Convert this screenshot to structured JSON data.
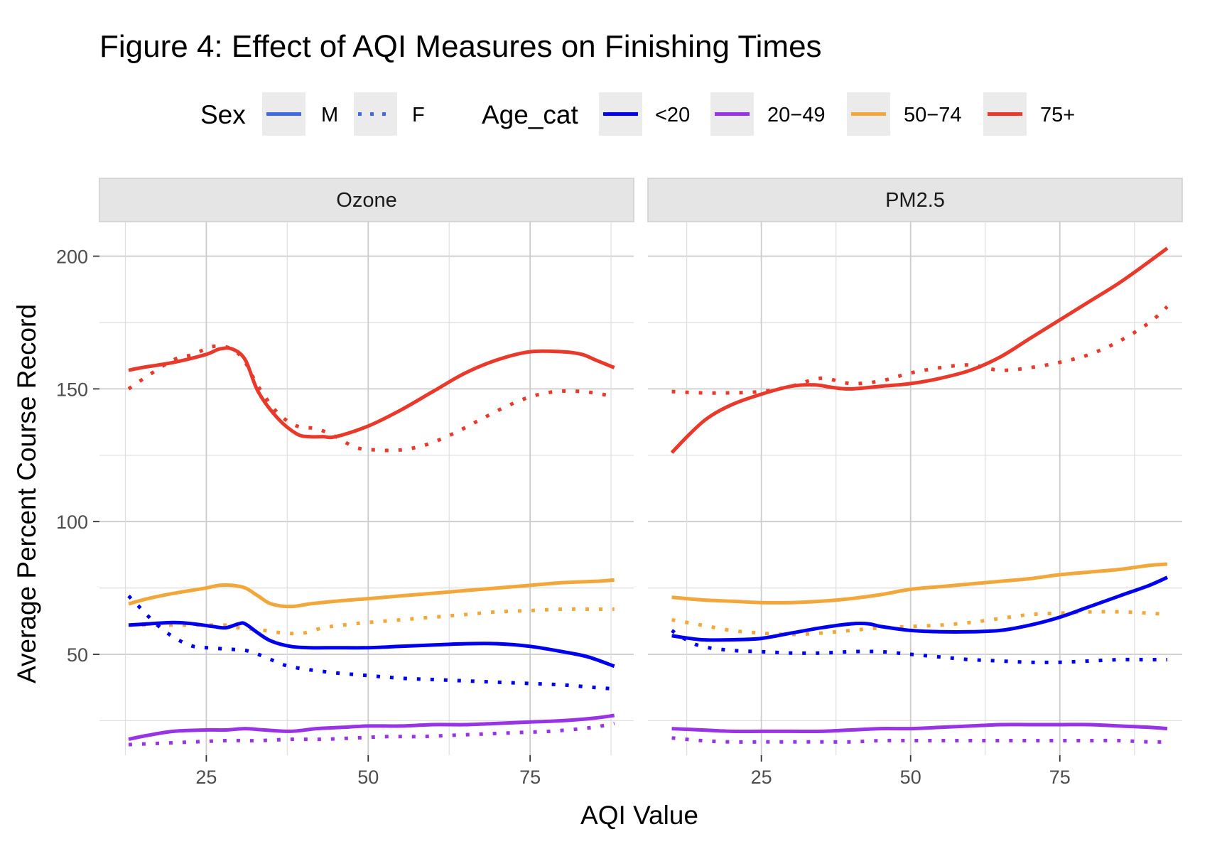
{
  "chart_data": {
    "type": "line",
    "title": "Figure 4: Effect of AQI Measures on Finishing Times",
    "xlabel": "AQI Value",
    "ylabel": "Average Percent Course Record",
    "grid": true,
    "legend_position": "top",
    "legend": {
      "sex": {
        "title": "Sex",
        "entries": [
          {
            "label": "M",
            "linetype": "solid"
          },
          {
            "label": "F",
            "linetype": "dotted"
          }
        ],
        "key_color": "#4169e1"
      },
      "age": {
        "title": "Age_cat",
        "entries": [
          {
            "label": "<20",
            "color": "#0000f0"
          },
          {
            "label": "20−49",
            "color": "#9933e6"
          },
          {
            "label": "50−74",
            "color": "#f2a73b"
          },
          {
            "label": "75+",
            "color": "#e8392b"
          }
        ]
      }
    },
    "ylim": [
      12,
      213
    ],
    "y_ticks": [
      50,
      100,
      150,
      200
    ],
    "y_tick_labels": [
      "50",
      "100",
      "150",
      "200"
    ],
    "x_ticks": [
      25,
      50,
      75
    ],
    "x_tick_labels": [
      "25",
      "50",
      "75"
    ],
    "panels": [
      {
        "name": "Ozone",
        "xlim": [
          8.5,
          91
        ],
        "series": [
          {
            "sex": "M",
            "age": "75+",
            "x": [
              13,
              15,
              20,
              25,
              27,
              29,
              31,
              33,
              36,
              39,
              41,
              43,
              45,
              50,
              55,
              60,
              65,
              70,
              75,
              80,
              83,
              85,
              88
            ],
            "y": [
              157,
              158,
              160,
              163,
              165,
              165,
              161,
              149,
              139,
              133,
              132,
              132,
              132,
              136,
              142,
              149,
              156,
              161,
              164,
              164,
              163,
              161,
              158
            ]
          },
          {
            "sex": "F",
            "age": "75+",
            "x": [
              13,
              16,
              20,
              23,
              26,
              29,
              31,
              33,
              36,
              39,
              42,
              45,
              48,
              51,
              55,
              59,
              63,
              67,
              71,
              75,
              79,
              83,
              86,
              88
            ],
            "y": [
              150,
              155,
              161,
              163,
              166,
              165,
              160,
              151,
              141,
              136,
              135,
              132,
              128,
              127,
              127,
              129,
              133,
              138,
              143,
              147,
              149,
              149,
              148,
              147
            ]
          },
          {
            "sex": "M",
            "age": "50−74",
            "x": [
              13,
              16,
              20,
              25,
              27,
              29,
              31,
              33,
              35,
              38,
              41,
              45,
              50,
              55,
              60,
              65,
              70,
              75,
              80,
              85,
              88
            ],
            "y": [
              69,
              71,
              73,
              75,
              76,
              76,
              75,
              72,
              69,
              68,
              69,
              70,
              71,
              72,
              73,
              74,
              75,
              76,
              77,
              77.5,
              78
            ]
          },
          {
            "sex": "F",
            "age": "50−74",
            "x": [
              13,
              16,
              20,
              23,
              25,
              28,
              30,
              34,
              37,
              40,
              43,
              46,
              50,
              55,
              60,
              65,
              70,
              75,
              80,
              85,
              88
            ],
            "y": [
              61,
              61,
              61,
              61,
              61,
              61,
              60,
              59,
              58,
              58,
              60,
              61,
              62,
              63,
              64,
              65,
              66,
              66.5,
              67,
              67,
              67
            ]
          },
          {
            "sex": "M",
            "age": "<20",
            "x": [
              13,
              16,
              20,
              23,
              26,
              28,
              30,
              31,
              33,
              35,
              38,
              41,
              45,
              50,
              55,
              60,
              65,
              70,
              75,
              80,
              84,
              88
            ],
            "y": [
              61,
              61.5,
              62,
              61.5,
              60.5,
              60,
              61.5,
              61.5,
              58,
              55,
              53,
              52.5,
              52.5,
              52.5,
              53,
              53.5,
              54,
              54,
              53,
              51,
              49,
              45.5
            ]
          },
          {
            "sex": "F",
            "age": "<20",
            "x": [
              13,
              15,
              17,
              19,
              21,
              23,
              25,
              28,
              31,
              33,
              35,
              37,
              40,
              45,
              50,
              55,
              60,
              65,
              70,
              75,
              80,
              85,
              88
            ],
            "y": [
              72,
              67,
              62,
              58,
              55,
              53,
              52.5,
              52,
              51.5,
              50,
              48,
              46,
              44.5,
              43,
              42,
              41,
              40.5,
              40,
              39.5,
              39,
              38.5,
              37.5,
              37
            ]
          },
          {
            "sex": "M",
            "age": "20−49",
            "x": [
              13,
              16,
              20,
              25,
              28,
              31,
              34,
              38,
              42,
              46,
              50,
              55,
              60,
              65,
              70,
              75,
              80,
              85,
              88
            ],
            "y": [
              18,
              19.5,
              21,
              21.5,
              21.5,
              22,
              21.5,
              21,
              22,
              22.5,
              23,
              23,
              23.5,
              23.5,
              24,
              24.5,
              25,
              26,
              27
            ]
          },
          {
            "sex": "F",
            "age": "20−49",
            "x": [
              13,
              18,
              23,
              28,
              33,
              38,
              43,
              48,
              53,
              58,
              63,
              68,
              73,
              78,
              83,
              86,
              88
            ],
            "y": [
              16,
              16.5,
              17,
              17.5,
              17.5,
              18,
              18,
              18.5,
              19,
              19,
              19.5,
              20,
              20.5,
              21,
              22,
              23,
              24
            ]
          }
        ]
      },
      {
        "name": "PM2.5",
        "xlim": [
          6,
          95.5
        ],
        "series": [
          {
            "sex": "M",
            "age": "75+",
            "x": [
              10,
              13,
              16,
              20,
              25,
              30,
              34,
              37,
              40,
              45,
              50,
              55,
              60,
              65,
              70,
              75,
              80,
              85,
              90,
              93
            ],
            "y": [
              126,
              133,
              139,
              144,
              148,
              151,
              151.5,
              150.5,
              150,
              151,
              152,
              154,
              157,
              162,
              169,
              176,
              183,
              190,
              198,
              203
            ]
          },
          {
            "sex": "F",
            "age": "75+",
            "x": [
              10,
              15,
              20,
              25,
              30,
              35,
              40,
              45,
              50,
              55,
              60,
              65,
              70,
              75,
              80,
              85,
              90,
              93
            ],
            "y": [
              149,
              148.5,
              148.5,
              149,
              151,
              154,
              152,
              153,
              156,
              158,
              159,
              157,
              158,
              160,
              163,
              168,
              175,
              181
            ]
          },
          {
            "sex": "M",
            "age": "50−74",
            "x": [
              10,
              15,
              20,
              25,
              30,
              35,
              40,
              45,
              50,
              55,
              60,
              65,
              70,
              75,
              80,
              85,
              90,
              93
            ],
            "y": [
              71.5,
              70.5,
              70,
              69.5,
              69.5,
              70,
              71,
              72.5,
              74.5,
              75.5,
              76.5,
              77.5,
              78.5,
              80,
              81,
              82,
              83.5,
              84
            ]
          },
          {
            "sex": "F",
            "age": "50−74",
            "x": [
              10,
              15,
              20,
              25,
              30,
              35,
              40,
              45,
              50,
              55,
              60,
              65,
              70,
              75,
              80,
              85,
              90,
              93
            ],
            "y": [
              63,
              61,
              59,
              58,
              57.5,
              58,
              59,
              60,
              60.5,
              61,
              62,
              63.5,
              65,
              65.5,
              66,
              66,
              65.5,
              65
            ]
          },
          {
            "sex": "M",
            "age": "<20",
            "x": [
              10,
              15,
              20,
              25,
              30,
              35,
              40,
              43,
              45,
              50,
              55,
              60,
              65,
              70,
              75,
              80,
              85,
              90,
              93
            ],
            "y": [
              57,
              55.5,
              55.5,
              56,
              58,
              60,
              61.5,
              61.5,
              60.5,
              59,
              58.5,
              58.5,
              59,
              61,
              64,
              68,
              72,
              76,
              79
            ]
          },
          {
            "sex": "F",
            "age": "<20",
            "x": [
              10,
              12,
              15,
              20,
              25,
              30,
              35,
              40,
              45,
              50,
              55,
              60,
              65,
              70,
              75,
              80,
              85,
              90,
              93
            ],
            "y": [
              59,
              56,
              53,
              51.5,
              51,
              50.5,
              50.5,
              51,
              51,
              50,
              49,
              48,
              47.5,
              47,
              47,
              47.5,
              48,
              48,
              48
            ]
          },
          {
            "sex": "M",
            "age": "20−49",
            "x": [
              10,
              15,
              20,
              25,
              30,
              35,
              40,
              45,
              50,
              55,
              60,
              65,
              70,
              75,
              80,
              85,
              90,
              93
            ],
            "y": [
              22,
              21.5,
              21,
              21,
              21,
              21,
              21.5,
              22,
              22,
              22.5,
              23,
              23.5,
              23.5,
              23.5,
              23.5,
              23,
              22.5,
              22
            ]
          },
          {
            "sex": "F",
            "age": "20−49",
            "x": [
              10,
              15,
              20,
              25,
              30,
              35,
              40,
              45,
              50,
              55,
              60,
              65,
              70,
              75,
              80,
              85,
              90,
              93
            ],
            "y": [
              18.5,
              17.5,
              17,
              17,
              17,
              17,
              17,
              17.5,
              17.5,
              17.5,
              17.5,
              17.5,
              17.5,
              17.5,
              17.5,
              17.5,
              17,
              17
            ]
          }
        ]
      }
    ]
  }
}
